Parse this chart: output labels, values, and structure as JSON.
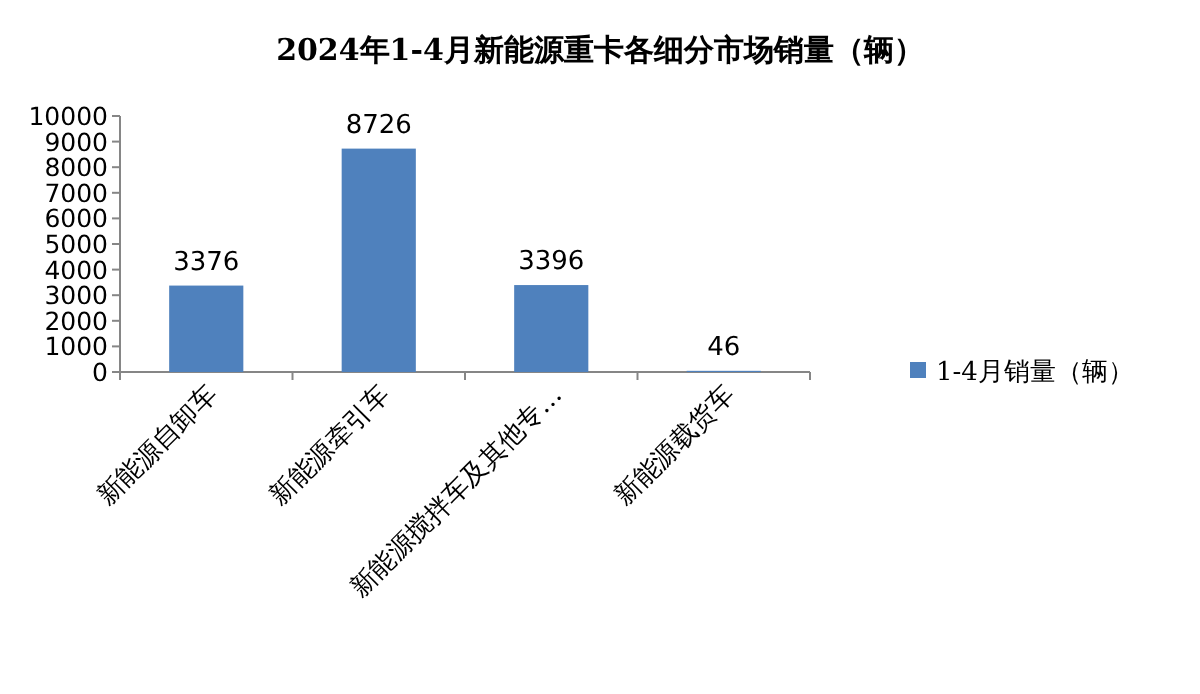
{
  "chart_data": {
    "type": "bar",
    "title": "2024年1-4月新能源重卡各细分市场销量（辆）",
    "categories": [
      "新能源自卸车",
      "新能源牵引车",
      "新能源搅拌车及其他专…",
      "新能源载货车"
    ],
    "series": [
      {
        "name": "1-4月销量（辆）",
        "color": "#4f81bd",
        "values": [
          3376,
          8726,
          3396,
          46
        ]
      }
    ],
    "ylim": [
      0,
      10000
    ],
    "yticks": [
      0,
      1000,
      2000,
      3000,
      4000,
      5000,
      6000,
      7000,
      8000,
      9000,
      10000
    ],
    "data_labels": true,
    "legend": "right",
    "grid": false
  }
}
